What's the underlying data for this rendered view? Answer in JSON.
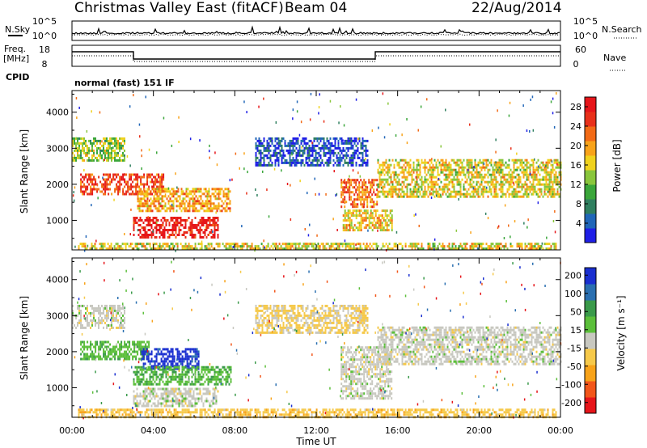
{
  "header": {
    "station": "Christmas Valley East (fitACF)",
    "beam": "Beam 04",
    "date": "22/Aug/2014",
    "cpid_label": "CPID",
    "cpid_value": "normal (fast) 151 IF"
  },
  "meta_panels": {
    "nsky_label": "N.Sky",
    "nsky_ticks": [
      "10^5",
      "10^0"
    ],
    "nsearch_label": "N.Search",
    "nsearch_ticks": [
      "10^5",
      "10^0"
    ],
    "freq_label_1": "Freq.",
    "freq_label_2": "[MHz]",
    "freq_ticks": [
      "18",
      "8"
    ],
    "nave_label": "Nave",
    "nave_ticks": [
      "60",
      "0"
    ]
  },
  "chart_data": [
    {
      "type": "heatmap",
      "name_printed": "",
      "ylabel": "Slant Range [km]",
      "xlabel": "Time UT",
      "x_ticks": [
        "00:00",
        "04:00",
        "08:00",
        "12:00",
        "16:00",
        "20:00",
        "00:00"
      ],
      "xlim_hours": [
        0,
        24
      ],
      "y_ticks": [
        "1000",
        "2000",
        "3000",
        "4000"
      ],
      "ylim_km": [
        180,
        4600
      ],
      "colorbar": {
        "label": "Power [dB]",
        "ticks": [
          "4",
          "8",
          "12",
          "16",
          "20",
          "24",
          "28"
        ],
        "range": [
          0,
          30
        ],
        "colors": [
          "#1f1fe6",
          "#2066b8",
          "#2f7f5f",
          "#3aa63a",
          "#89c63c",
          "#f0d21e",
          "#f8a31a",
          "#f26a16",
          "#e8301a",
          "#e6151a"
        ]
      },
      "echo_regions": [
        {
          "t0": 0.0,
          "t1": 2.6,
          "r0": 2650,
          "r1": 3300,
          "level": 0.45
        },
        {
          "t0": 0.4,
          "t1": 4.5,
          "r0": 1750,
          "r1": 2300,
          "level": 0.85
        },
        {
          "t0": 3.2,
          "t1": 7.8,
          "r0": 1250,
          "r1": 1900,
          "level": 0.65
        },
        {
          "t0": 3.0,
          "t1": 7.2,
          "r0": 550,
          "r1": 1100,
          "level": 0.95
        },
        {
          "t0": 0.3,
          "t1": 23.8,
          "r0": 180,
          "r1": 380,
          "level": 0.55
        },
        {
          "t0": 13.2,
          "t1": 15.0,
          "r0": 1350,
          "r1": 2150,
          "level": 0.75
        },
        {
          "t0": 13.3,
          "t1": 15.7,
          "r0": 700,
          "r1": 1300,
          "level": 0.6
        },
        {
          "t0": 15.0,
          "t1": 24.0,
          "r0": 1650,
          "r1": 2700,
          "level": 0.55
        },
        {
          "t0": 9.0,
          "t1": 14.5,
          "r0": 2500,
          "r1": 3300,
          "level": 0.12
        }
      ]
    },
    {
      "type": "heatmap",
      "ylabel": "Slant Range [km]",
      "xlabel": "Time UT",
      "x_ticks": [
        "00:00",
        "04:00",
        "08:00",
        "12:00",
        "16:00",
        "20:00",
        "00:00"
      ],
      "xlim_hours": [
        0,
        24
      ],
      "y_ticks": [
        "1000",
        "2000",
        "3000",
        "4000"
      ],
      "ylim_km": [
        180,
        4600
      ],
      "colorbar": {
        "label": "Velocity [m s⁻¹]",
        "ticks": [
          "200",
          "100",
          "50",
          "15",
          "-15",
          "-50",
          "-100",
          "-200"
        ],
        "range": [
          -250,
          250
        ],
        "colors": [
          "#e6151a",
          "#f2561a",
          "#f8a31a",
          "#f6c94a",
          "#c8c8c0",
          "#5bbf3a",
          "#3a9a4a",
          "#2a6fb0",
          "#1a2fd0"
        ]
      },
      "echo_regions": [
        {
          "t0": 0.0,
          "t1": 2.6,
          "r0": 2650,
          "r1": 3300,
          "vel": 0
        },
        {
          "t0": 0.4,
          "t1": 3.8,
          "r0": 1800,
          "r1": 2300,
          "vel": 60
        },
        {
          "t0": 3.4,
          "t1": 6.2,
          "r0": 1550,
          "r1": 2100,
          "vel": 220
        },
        {
          "t0": 3.0,
          "t1": 7.8,
          "r0": 1100,
          "r1": 1600,
          "vel": 70
        },
        {
          "t0": 3.0,
          "t1": 7.2,
          "r0": 500,
          "r1": 1000,
          "vel": 0
        },
        {
          "t0": 0.3,
          "t1": 23.8,
          "r0": 180,
          "r1": 420,
          "vel": -60
        },
        {
          "t0": 13.2,
          "t1": 15.7,
          "r0": 700,
          "r1": 2150,
          "vel": 0
        },
        {
          "t0": 15.0,
          "t1": 24.0,
          "r0": 1650,
          "r1": 2700,
          "vel": 0
        },
        {
          "t0": 9.0,
          "t1": 14.5,
          "r0": 2500,
          "r1": 3300,
          "vel": -40
        }
      ]
    }
  ]
}
